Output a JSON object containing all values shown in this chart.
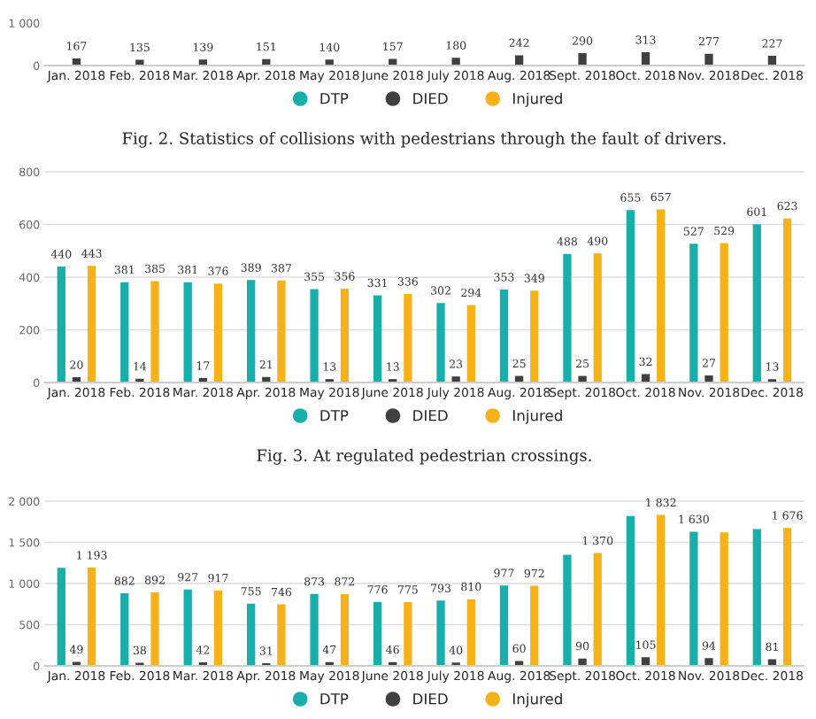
{
  "chart_data": [
    {
      "type": "bar",
      "categories": [
        "Jan. 2018",
        "Feb. 2018",
        "Mar. 2018",
        "Apr. 2018",
        "May 2018",
        "June 2018",
        "July 2018",
        "Aug. 2018",
        "Sept. 2018",
        "Oct. 2018",
        "Nov. 2018",
        "Dec. 2018"
      ],
      "series": [
        {
          "name": "DTP",
          "color": "#1aaeaa",
          "values": [
            null,
            null,
            null,
            null,
            null,
            null,
            null,
            null,
            null,
            null,
            null,
            null
          ]
        },
        {
          "name": "DIED",
          "color": "#404040",
          "values": [
            167,
            135,
            139,
            151,
            140,
            157,
            180,
            242,
            290,
            313,
            277,
            227
          ],
          "value_labels": [
            "167",
            "135",
            "139",
            "151",
            "140",
            "157",
            "180",
            "242",
            "290",
            "313",
            "277",
            "227"
          ]
        },
        {
          "name": "Injured",
          "color": "#f5b21a",
          "values": [
            null,
            null,
            null,
            null,
            null,
            null,
            null,
            null,
            null,
            null,
            null,
            null
          ]
        }
      ],
      "ylim": [
        0,
        1000
      ],
      "yticks": [
        0,
        {
          "value": 1000,
          "label": "1 000"
        }
      ],
      "legend": "bottom",
      "annotations": [
        "Fig. 2. Statistics of collisions with pedestrians through the fault of drivers."
      ]
    },
    {
      "type": "bar",
      "categories": [
        "Jan. 2018",
        "Feb. 2018",
        "Mar. 2018",
        "Apr. 2018",
        "May 2018",
        "June 2018",
        "July 2018",
        "Aug. 2018",
        "Sept. 2018",
        "Oct. 2018",
        "Nov. 2018",
        "Dec. 2018"
      ],
      "series": [
        {
          "name": "DTP",
          "color": "#1aaeaa",
          "values": [
            440,
            381,
            381,
            389,
            355,
            331,
            302,
            353,
            488,
            655,
            527,
            601
          ]
        },
        {
          "name": "DIED",
          "color": "#404040",
          "values": [
            20,
            14,
            17,
            21,
            13,
            13,
            23,
            25,
            25,
            32,
            27,
            13
          ]
        },
        {
          "name": "Injured",
          "color": "#f5b21a",
          "values": [
            443,
            385,
            376,
            387,
            356,
            336,
            294,
            349,
            490,
            657,
            529,
            623
          ]
        }
      ],
      "data_labels": true,
      "ylim": [
        0,
        800
      ],
      "yticks": [
        0,
        200,
        400,
        600,
        800
      ],
      "grid": "y",
      "legend": "bottom",
      "annotations": [
        "Fig. 3. At regulated pedestrian crossings."
      ]
    },
    {
      "type": "bar",
      "categories": [
        "Jan. 2018",
        "Feb. 2018",
        "Mar. 2018",
        "Apr. 2018",
        "May 2018",
        "June 2018",
        "July 2018",
        "Aug. 2018",
        "Sept. 2018",
        "Oct. 2018",
        "Nov. 2018",
        "Dec. 2018"
      ],
      "series": [
        {
          "name": "DTP",
          "color": "#1aaeaa",
          "values": [
            1190,
            882,
            927,
            755,
            873,
            776,
            793,
            977,
            1350,
            1820,
            1630,
            1660
          ],
          "value_labels": [
            null,
            "882",
            "927",
            "755",
            "873",
            "776",
            "793",
            "977",
            null,
            null,
            "1 630",
            null
          ]
        },
        {
          "name": "DIED",
          "color": "#404040",
          "values": [
            49,
            38,
            42,
            31,
            47,
            46,
            40,
            60,
            90,
            105,
            94,
            81
          ],
          "value_labels": [
            "49",
            "38",
            "42",
            "31",
            "47",
            "46",
            "40",
            "60",
            "90",
            "105",
            "94",
            "81"
          ]
        },
        {
          "name": "Injured",
          "color": "#f5b21a",
          "values": [
            1193,
            892,
            917,
            746,
            872,
            775,
            810,
            972,
            1370,
            1832,
            1620,
            1676
          ],
          "value_labels": [
            "1 193",
            "892",
            "917",
            "746",
            "872",
            "775",
            "810",
            "972",
            "1 370",
            "1 832",
            null,
            "1 676"
          ]
        }
      ],
      "ylim": [
        0,
        2000
      ],
      "yticks": [
        0,
        500,
        {
          "value": 1000,
          "label": "1 000"
        },
        {
          "value": 1500,
          "label": "1 500"
        },
        {
          "value": 2000,
          "label": "2 000"
        }
      ],
      "grid": "y",
      "legend": "bottom"
    }
  ]
}
